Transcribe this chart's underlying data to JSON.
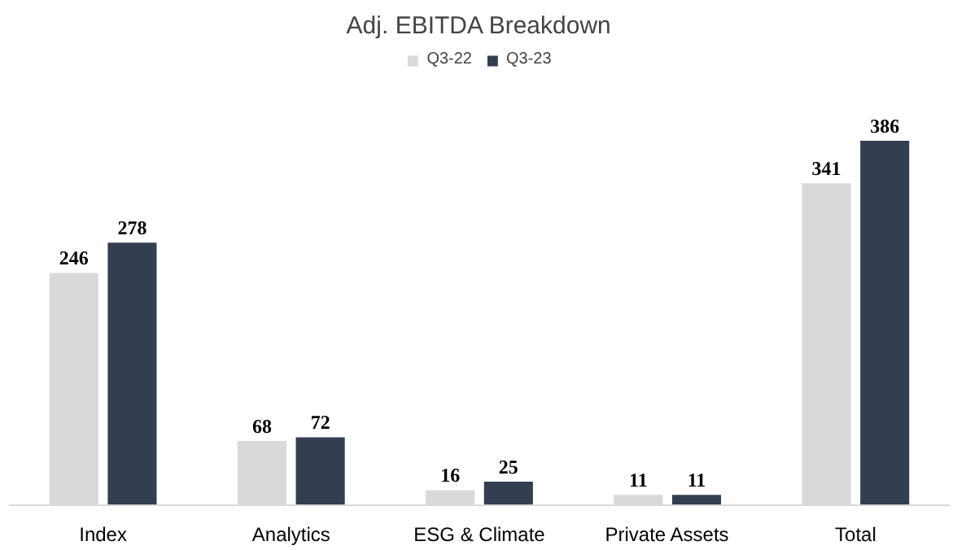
{
  "chart_data": {
    "type": "bar",
    "title": "Adj. EBITDA Breakdown",
    "categories": [
      "Index",
      "Analytics",
      "ESG & Climate",
      "Private Assets",
      "Total"
    ],
    "series": [
      {
        "name": "Q3-22",
        "color": "#d9d9d9",
        "values": [
          246,
          68,
          16,
          11,
          341
        ]
      },
      {
        "name": "Q3-23",
        "color": "#333f50",
        "values": [
          278,
          72,
          25,
          11,
          386
        ]
      }
    ],
    "data_labels": true,
    "legend": "top"
  }
}
